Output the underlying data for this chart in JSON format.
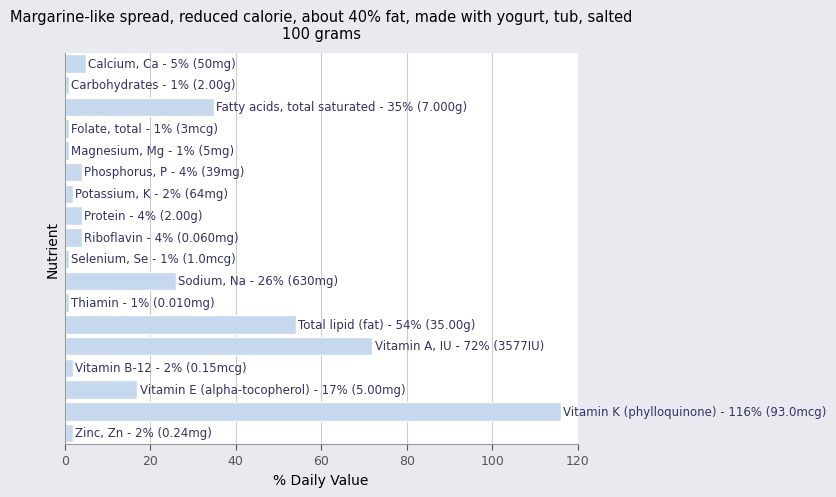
{
  "title": "Margarine-like spread, reduced calorie, about 40% fat, made with yogurt, tub, salted\n100 grams",
  "xlabel": "% Daily Value",
  "ylabel": "Nutrient",
  "figure_bg_color": "#e8eaf0",
  "axes_bg_color": "#ffffff",
  "bar_color": "#c5d8ee",
  "bar_edge_color": "#c5d8ee",
  "text_color": "#333366",
  "nutrients": [
    {
      "label": "Calcium, Ca - 5% (50mg)",
      "value": 5
    },
    {
      "label": "Carbohydrates - 1% (2.00g)",
      "value": 1
    },
    {
      "label": "Fatty acids, total saturated - 35% (7.000g)",
      "value": 35
    },
    {
      "label": "Folate, total - 1% (3mcg)",
      "value": 1
    },
    {
      "label": "Magnesium, Mg - 1% (5mg)",
      "value": 1
    },
    {
      "label": "Phosphorus, P - 4% (39mg)",
      "value": 4
    },
    {
      "label": "Potassium, K - 2% (64mg)",
      "value": 2
    },
    {
      "label": "Protein - 4% (2.00g)",
      "value": 4
    },
    {
      "label": "Riboflavin - 4% (0.060mg)",
      "value": 4
    },
    {
      "label": "Selenium, Se - 1% (1.0mcg)",
      "value": 1
    },
    {
      "label": "Sodium, Na - 26% (630mg)",
      "value": 26
    },
    {
      "label": "Thiamin - 1% (0.010mg)",
      "value": 1
    },
    {
      "label": "Total lipid (fat) - 54% (35.00g)",
      "value": 54
    },
    {
      "label": "Vitamin A, IU - 72% (3577IU)",
      "value": 72
    },
    {
      "label": "Vitamin B-12 - 2% (0.15mcg)",
      "value": 2
    },
    {
      "label": "Vitamin E (alpha-tocopherol) - 17% (5.00mg)",
      "value": 17
    },
    {
      "label": "Vitamin K (phylloquinone) - 116% (93.0mcg)",
      "value": 116
    },
    {
      "label": "Zinc, Zn - 2% (0.24mg)",
      "value": 2
    }
  ],
  "xlim": [
    0,
    120
  ],
  "xticks": [
    0,
    20,
    40,
    60,
    80,
    100,
    120
  ],
  "title_fontsize": 10.5,
  "label_fontsize": 8.5,
  "axis_label_fontsize": 10,
  "axis_tick_fontsize": 9,
  "grid_color": "#cccccc",
  "grid_linewidth": 0.8
}
